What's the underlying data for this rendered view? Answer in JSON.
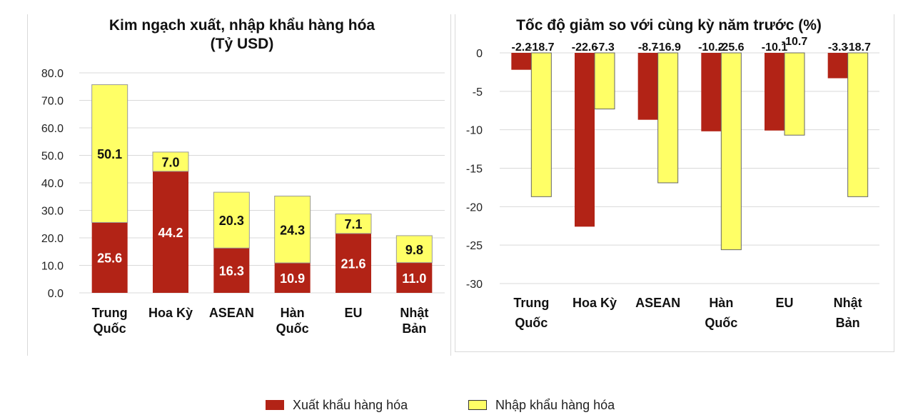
{
  "colors": {
    "export": "#b22316",
    "import": "#ffff66",
    "grid": "#d9d9d9",
    "text": "#111111"
  },
  "legend": {
    "export_label": "Xuất khẩu hàng hóa",
    "import_label": "Nhập khẩu hàng hóa"
  },
  "chart_data": [
    {
      "type": "bar",
      "stacked": true,
      "title": "Kim ngạch xuất, nhập khẩu hàng hóa",
      "subtitle": "(Tỷ USD)",
      "categories": [
        [
          "Trung",
          "Quốc"
        ],
        [
          "Hoa Kỳ"
        ],
        [
          "ASEAN"
        ],
        [
          "Hàn",
          "Quốc"
        ],
        [
          "EU"
        ],
        [
          "Nhật",
          "Bản"
        ]
      ],
      "series": [
        {
          "name": "Xuất khẩu hàng hóa",
          "values": [
            25.6,
            44.2,
            16.3,
            10.9,
            21.6,
            11.0
          ],
          "labels": [
            "25.6",
            "44.2",
            "16.3",
            "10.9",
            "21.6",
            "11.0"
          ]
        },
        {
          "name": "Nhập khẩu hàng hóa",
          "values": [
            50.1,
            7.0,
            20.3,
            24.3,
            7.1,
            9.8
          ],
          "labels": [
            "50.1",
            "7.0",
            "20.3",
            "24.3",
            "7.1",
            "9.8"
          ]
        }
      ],
      "ylim": [
        0,
        80
      ],
      "yticks": [
        "80.0",
        "70.0",
        "60.0",
        "50.0",
        "40.0",
        "30.0",
        "20.0",
        "10.0",
        "0.0"
      ],
      "grid": true
    },
    {
      "type": "bar",
      "stacked": false,
      "title": "Tốc độ giảm so với cùng kỳ năm trước (%)",
      "categories": [
        [
          "Trung",
          "Quốc"
        ],
        [
          "Hoa Kỳ"
        ],
        [
          "ASEAN"
        ],
        [
          "Hàn",
          "Quốc"
        ],
        [
          "EU"
        ],
        [
          "Nhật",
          "Bản"
        ]
      ],
      "series": [
        {
          "name": "Xuất khẩu hàng hóa",
          "values": [
            -2.2,
            -22.6,
            -8.7,
            -10.2,
            -10.1,
            -3.3
          ],
          "labels": [
            "-2.2",
            "-22.6",
            "-8.7",
            "-10.2",
            "-10.1",
            "-3.3"
          ]
        },
        {
          "name": "Nhập khẩu hàng hóa",
          "values": [
            -18.7,
            -7.3,
            -16.9,
            -25.6,
            -10.7,
            -18.7
          ],
          "labels": [
            "-18.7",
            "-7.3",
            "-16.9",
            "-25.6",
            "-10.7",
            "-18.7"
          ]
        }
      ],
      "ylim": [
        -30,
        0
      ],
      "yticks": [
        "0",
        "-5",
        "-10",
        "-15",
        "-20",
        "-25",
        "-30"
      ],
      "grid": true
    }
  ]
}
